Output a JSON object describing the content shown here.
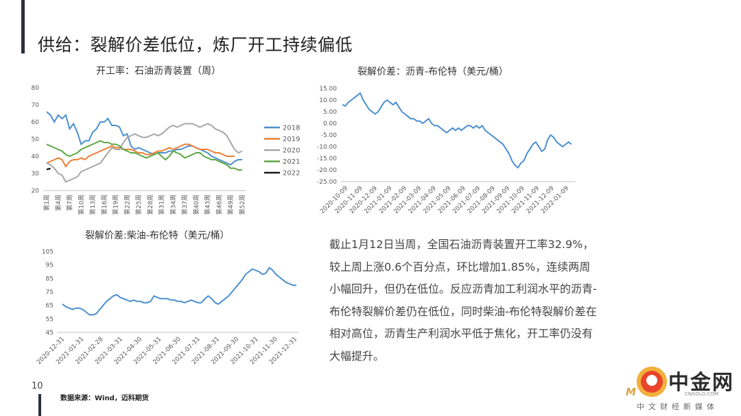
{
  "slide": {
    "title": "供给：裂解价差低位，炼厂开工持续偏低",
    "page_number": "10",
    "source_note": "数据来源：Wind，迈科期货",
    "body_text": "截止1月12日当周，全国石油沥青装置开工率32.9%，较上周上涨0.6个百分点，环比增加1.85%，连续两周小幅回升，但仍在低位。反应沥青加工利润水平的沥青-布伦特裂解价差仍在低位，同时柴油-布伦特裂解价差在相对高位，沥青生产利润水平低于焦化，开工率仍没有大幅提升。"
  },
  "watermark": {
    "brand": "中金网",
    "site": "CNGOLD.COM",
    "slogan": "中文财经新媒体",
    "mark": "M"
  },
  "chart_data": [
    {
      "type": "line",
      "title": "开工率：石油沥青装置（周）",
      "ylim": [
        20,
        80
      ],
      "yticks": [
        "20",
        "30",
        "40",
        "50",
        "60",
        "70",
        "80"
      ],
      "x_count": 52,
      "xticks": [
        {
          "index": 1,
          "label": "第1周"
        },
        {
          "index": 4,
          "label": "第4周"
        },
        {
          "index": 7,
          "label": "第7周"
        },
        {
          "index": 10,
          "label": "第10周"
        },
        {
          "index": 13,
          "label": "第13周"
        },
        {
          "index": 16,
          "label": "第16周"
        },
        {
          "index": 19,
          "label": "第19周"
        },
        {
          "index": 22,
          "label": "第22周"
        },
        {
          "index": 25,
          "label": "第25周"
        },
        {
          "index": 28,
          "label": "第28周"
        },
        {
          "index": 31,
          "label": "第31周"
        },
        {
          "index": 34,
          "label": "第34周"
        },
        {
          "index": 37,
          "label": "第37周"
        },
        {
          "index": 40,
          "label": "第40周"
        },
        {
          "index": 43,
          "label": "第43周"
        },
        {
          "index": 46,
          "label": "第46周"
        },
        {
          "index": 49,
          "label": "第49周"
        },
        {
          "index": 52,
          "label": "第52周"
        }
      ],
      "legend_position": "right",
      "series": [
        {
          "name": "2018",
          "color": "#4a8fcf",
          "values": [
            66,
            64,
            60,
            64,
            62,
            64,
            56,
            59,
            54,
            47,
            49,
            49,
            54,
            56,
            60,
            60,
            62,
            58,
            58,
            57,
            52,
            53,
            46,
            44,
            45,
            44,
            43,
            42,
            41,
            42,
            42,
            42,
            43,
            43,
            44,
            44,
            45,
            46,
            46,
            45,
            44,
            43,
            42,
            40,
            39,
            38,
            37,
            36,
            35,
            37,
            38,
            38
          ]
        },
        {
          "name": "2019",
          "color": "#ed7d31",
          "values": [
            36,
            37,
            38,
            39,
            38,
            34,
            37,
            38,
            38,
            39,
            38,
            40,
            41,
            42,
            43,
            44,
            45,
            46,
            45,
            45,
            44,
            44,
            44,
            43,
            42,
            42,
            41,
            41,
            42,
            43,
            43,
            44,
            45,
            44,
            45,
            46,
            47,
            47,
            46,
            45,
            44,
            44,
            44,
            43,
            42,
            42,
            41,
            40,
            40,
            40,
            null,
            null
          ]
        },
        {
          "name": "2020",
          "color": "#a5a5a5",
          "values": [
            36,
            35,
            33,
            30,
            29,
            25,
            26,
            27,
            28,
            31,
            32,
            33,
            34,
            35,
            36,
            39,
            42,
            45,
            44,
            44,
            48,
            51,
            52,
            53,
            52,
            51,
            51,
            52,
            53,
            52,
            53,
            55,
            57,
            58,
            57,
            58,
            59,
            59,
            59,
            58,
            57,
            58,
            59,
            58,
            56,
            55,
            54,
            52,
            48,
            44,
            42,
            43
          ]
        },
        {
          "name": "2021",
          "color": "#5ca640",
          "values": [
            47,
            46,
            45,
            44,
            43,
            41,
            40,
            41,
            42,
            44,
            45,
            46,
            47,
            48,
            49,
            48,
            48,
            47,
            47,
            46,
            44,
            43,
            42,
            42,
            41,
            40,
            39,
            40,
            41,
            42,
            40,
            38,
            40,
            43,
            42,
            41,
            39,
            40,
            41,
            42,
            42,
            40,
            39,
            38,
            38,
            37,
            36,
            35,
            33,
            33,
            32,
            32
          ]
        },
        {
          "name": "2022",
          "color": "#1a1a1a",
          "values": [
            32.3,
            32.9
          ]
        }
      ]
    },
    {
      "type": "line",
      "title": "裂解价差：沥青-布伦特（美元/桶）",
      "ylim": [
        -25,
        15
      ],
      "yticks": [
        "-25.00",
        "-20.00",
        "-15.00",
        "-10.00",
        "-5.00",
        "0.00",
        "5.00",
        "10.00",
        "15.00"
      ],
      "xticks": [
        "2020-10-09",
        "2020-11-09",
        "2020-12-09",
        "2021-01-09",
        "2021-02-09",
        "2021-03-09",
        "2021-04-09",
        "2021-05-09",
        "2021-06-09",
        "2021-07-09",
        "2021-08-09",
        "2021-09-09",
        "2021-10-09",
        "2021-11-09",
        "2021-12-09",
        "2022-01-09"
      ],
      "series": [
        {
          "name": "",
          "color": "#4a8fcf",
          "values": [
            8,
            7.5,
            9,
            10,
            11,
            12,
            13,
            10,
            8,
            6,
            5,
            4,
            5,
            7,
            9,
            10,
            9,
            8,
            9,
            7,
            5,
            4,
            3,
            2,
            2,
            1,
            1,
            0,
            1,
            2,
            0,
            -1,
            -1,
            -2,
            -3,
            -4,
            -3,
            -2,
            -3,
            -2,
            -3,
            -2,
            -1,
            -1,
            -2,
            -1,
            -2,
            -1,
            -3,
            -4,
            -5,
            -6,
            -7,
            -8,
            -9,
            -11,
            -13,
            -16,
            -18,
            -19,
            -17,
            -16,
            -13,
            -11,
            -9,
            -8,
            -10,
            -12,
            -11,
            -7,
            -5,
            -6,
            -8,
            -9,
            -10,
            -9,
            -8,
            -9
          ]
        }
      ]
    },
    {
      "type": "line",
      "title": "裂解价差:柴油-布伦特（美元/桶）",
      "ylim": [
        45,
        105
      ],
      "yticks": [
        "45",
        "55",
        "65",
        "75",
        "85",
        "95",
        "105"
      ],
      "xticks": [
        "2020-12-31",
        "2021-01-31",
        "2021-02-28",
        "2021-03-31",
        "2021-04-30",
        "2021-05-31",
        "2021-06-30",
        "2021-07-31",
        "2021-08-31",
        "2021-09-30",
        "2021-10-31",
        "2021-11-30",
        "2021-12-31"
      ],
      "series": [
        {
          "name": "",
          "color": "#4a8fcf",
          "values": [
            66,
            64,
            63,
            62,
            63,
            63,
            62,
            60,
            58,
            58,
            59,
            62,
            65,
            68,
            70,
            72,
            73,
            71,
            70,
            69,
            68,
            69,
            68,
            68,
            67,
            67,
            68,
            72,
            71,
            70,
            70,
            70,
            69,
            69,
            68,
            68,
            67,
            68,
            69,
            68,
            67,
            67,
            70,
            72,
            70,
            67,
            66,
            68,
            70,
            72,
            75,
            78,
            81,
            84,
            88,
            90,
            92,
            91,
            90,
            88,
            89,
            93,
            91,
            88,
            86,
            84,
            82,
            81,
            80,
            80
          ]
        }
      ]
    }
  ]
}
